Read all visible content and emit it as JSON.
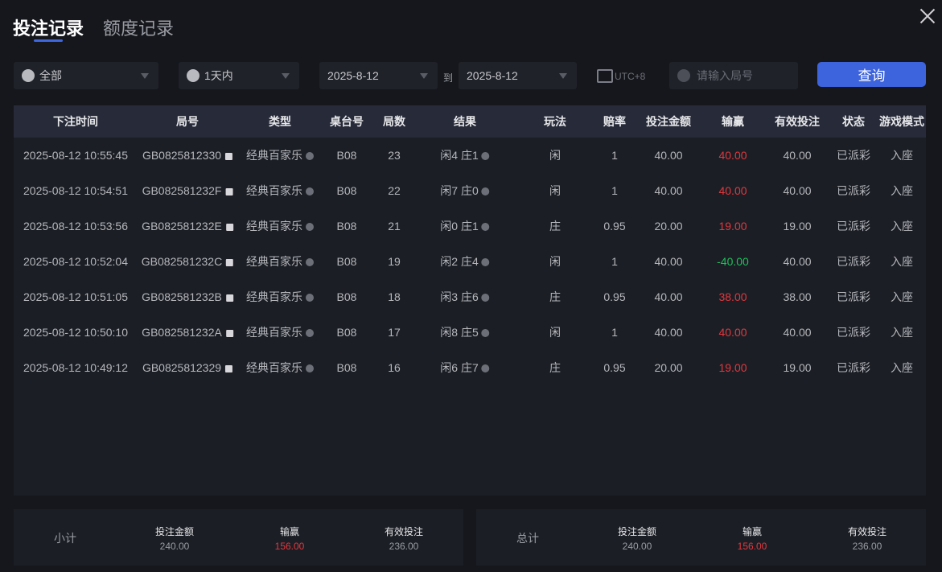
{
  "tabs": [
    "投注记录",
    "额度记录"
  ],
  "filters": {
    "game": "全部",
    "period": "1天内",
    "date_from": "2025-8-12",
    "to_label": "到",
    "date_to": "2025-8-12",
    "timezone": "UTC+8",
    "round_placeholder": "请输入局号",
    "query_label": "查询"
  },
  "columns": [
    "下注时间",
    "局号",
    "类型",
    "桌台号",
    "局数",
    "结果",
    "玩法",
    "赔率",
    "投注金额",
    "输赢",
    "有效投注",
    "状态",
    "游戏模式"
  ],
  "rows": [
    [
      "2025-08-12 10:55:45",
      "GB0825812330",
      "经典百家乐",
      "B08",
      "23",
      "闲4 庄1",
      "闲",
      "1",
      "40.00",
      "40.00",
      "40.00",
      "已派彩",
      "入座"
    ],
    [
      "2025-08-12 10:54:51",
      "GB082581232F",
      "经典百家乐",
      "B08",
      "22",
      "闲7 庄0",
      "闲",
      "1",
      "40.00",
      "40.00",
      "40.00",
      "已派彩",
      "入座"
    ],
    [
      "2025-08-12 10:53:56",
      "GB082581232E",
      "经典百家乐",
      "B08",
      "21",
      "闲0 庄1",
      "庄",
      "0.95",
      "20.00",
      "19.00",
      "19.00",
      "已派彩",
      "入座"
    ],
    [
      "2025-08-12 10:52:04",
      "GB082581232C",
      "经典百家乐",
      "B08",
      "19",
      "闲2 庄4",
      "闲",
      "1",
      "40.00",
      "-40.00",
      "40.00",
      "已派彩",
      "入座"
    ],
    [
      "2025-08-12 10:51:05",
      "GB082581232B",
      "经典百家乐",
      "B08",
      "18",
      "闲3 庄6",
      "庄",
      "0.95",
      "40.00",
      "38.00",
      "38.00",
      "已派彩",
      "入座"
    ],
    [
      "2025-08-12 10:50:10",
      "GB082581232A",
      "经典百家乐",
      "B08",
      "17",
      "闲8 庄5",
      "闲",
      "1",
      "40.00",
      "40.00",
      "40.00",
      "已派彩",
      "入座"
    ],
    [
      "2025-08-12 10:49:12",
      "GB0825812329",
      "经典百家乐",
      "B08",
      "16",
      "闲6 庄7",
      "庄",
      "0.95",
      "20.00",
      "19.00",
      "19.00",
      "已派彩",
      "入座"
    ]
  ],
  "subtotal": {
    "label": "小计",
    "bet_label": "投注金额",
    "bet": "240.00",
    "win_label": "输赢",
    "win": "156.00",
    "valid_label": "有效投注",
    "valid": "236.00"
  },
  "total": {
    "label": "总计",
    "bet_label": "投注金额",
    "bet": "240.00",
    "win_label": "输赢",
    "win": "156.00",
    "valid_label": "有效投注",
    "valid": "236.00"
  },
  "colors": {
    "accent": "#3d63dd",
    "win": "#e0383e",
    "loss": "#1fbf5a"
  }
}
